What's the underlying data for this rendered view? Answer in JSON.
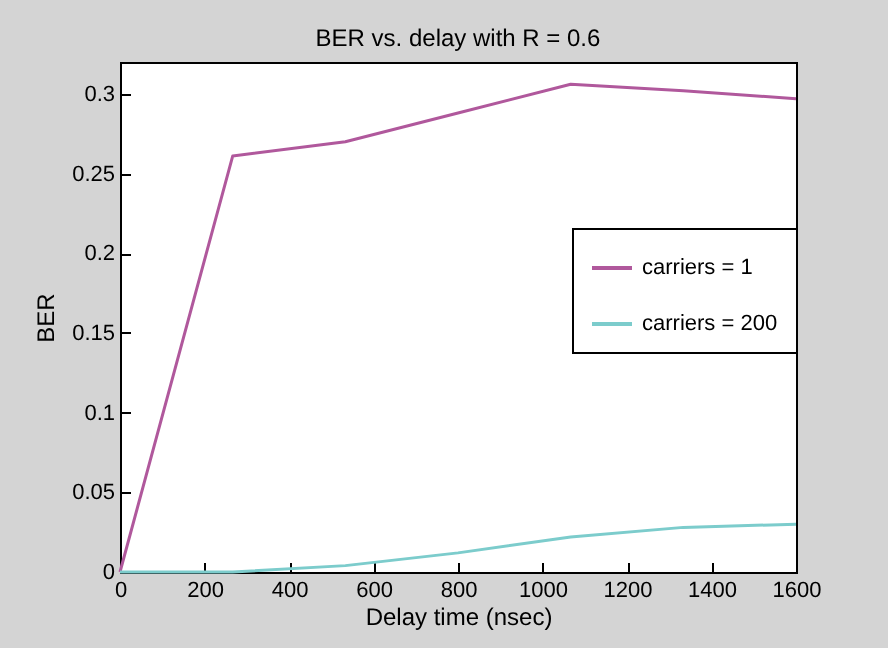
{
  "chart_data": {
    "type": "line",
    "title": "BER vs. delay with R = 0.6",
    "xlabel": "Delay time (nsec)",
    "ylabel": "BER",
    "x": [
      0,
      266.7,
      533.3,
      800,
      1066.7,
      1333.3,
      1600
    ],
    "series": [
      {
        "name": "carriers = 1",
        "color": "#b0589c",
        "values": [
          0,
          0.261,
          0.27,
          0.288,
          0.306,
          0.302,
          0.297
        ]
      },
      {
        "name": "carriers = 200",
        "color": "#7ccccc",
        "values": [
          0,
          0,
          0.004,
          0.012,
          0.022,
          0.028,
          0.03
        ]
      }
    ],
    "xlim": [
      0,
      1600
    ],
    "xticks": [
      0,
      200,
      400,
      600,
      800,
      1000,
      1200,
      1400,
      1600
    ],
    "ylim": [
      0,
      0.32
    ],
    "yticks": [
      0,
      0.05,
      0.1,
      0.15,
      0.2,
      0.25,
      0.3
    ],
    "grid": false,
    "legend": "right",
    "marker": "none",
    "line_style": "solid"
  }
}
